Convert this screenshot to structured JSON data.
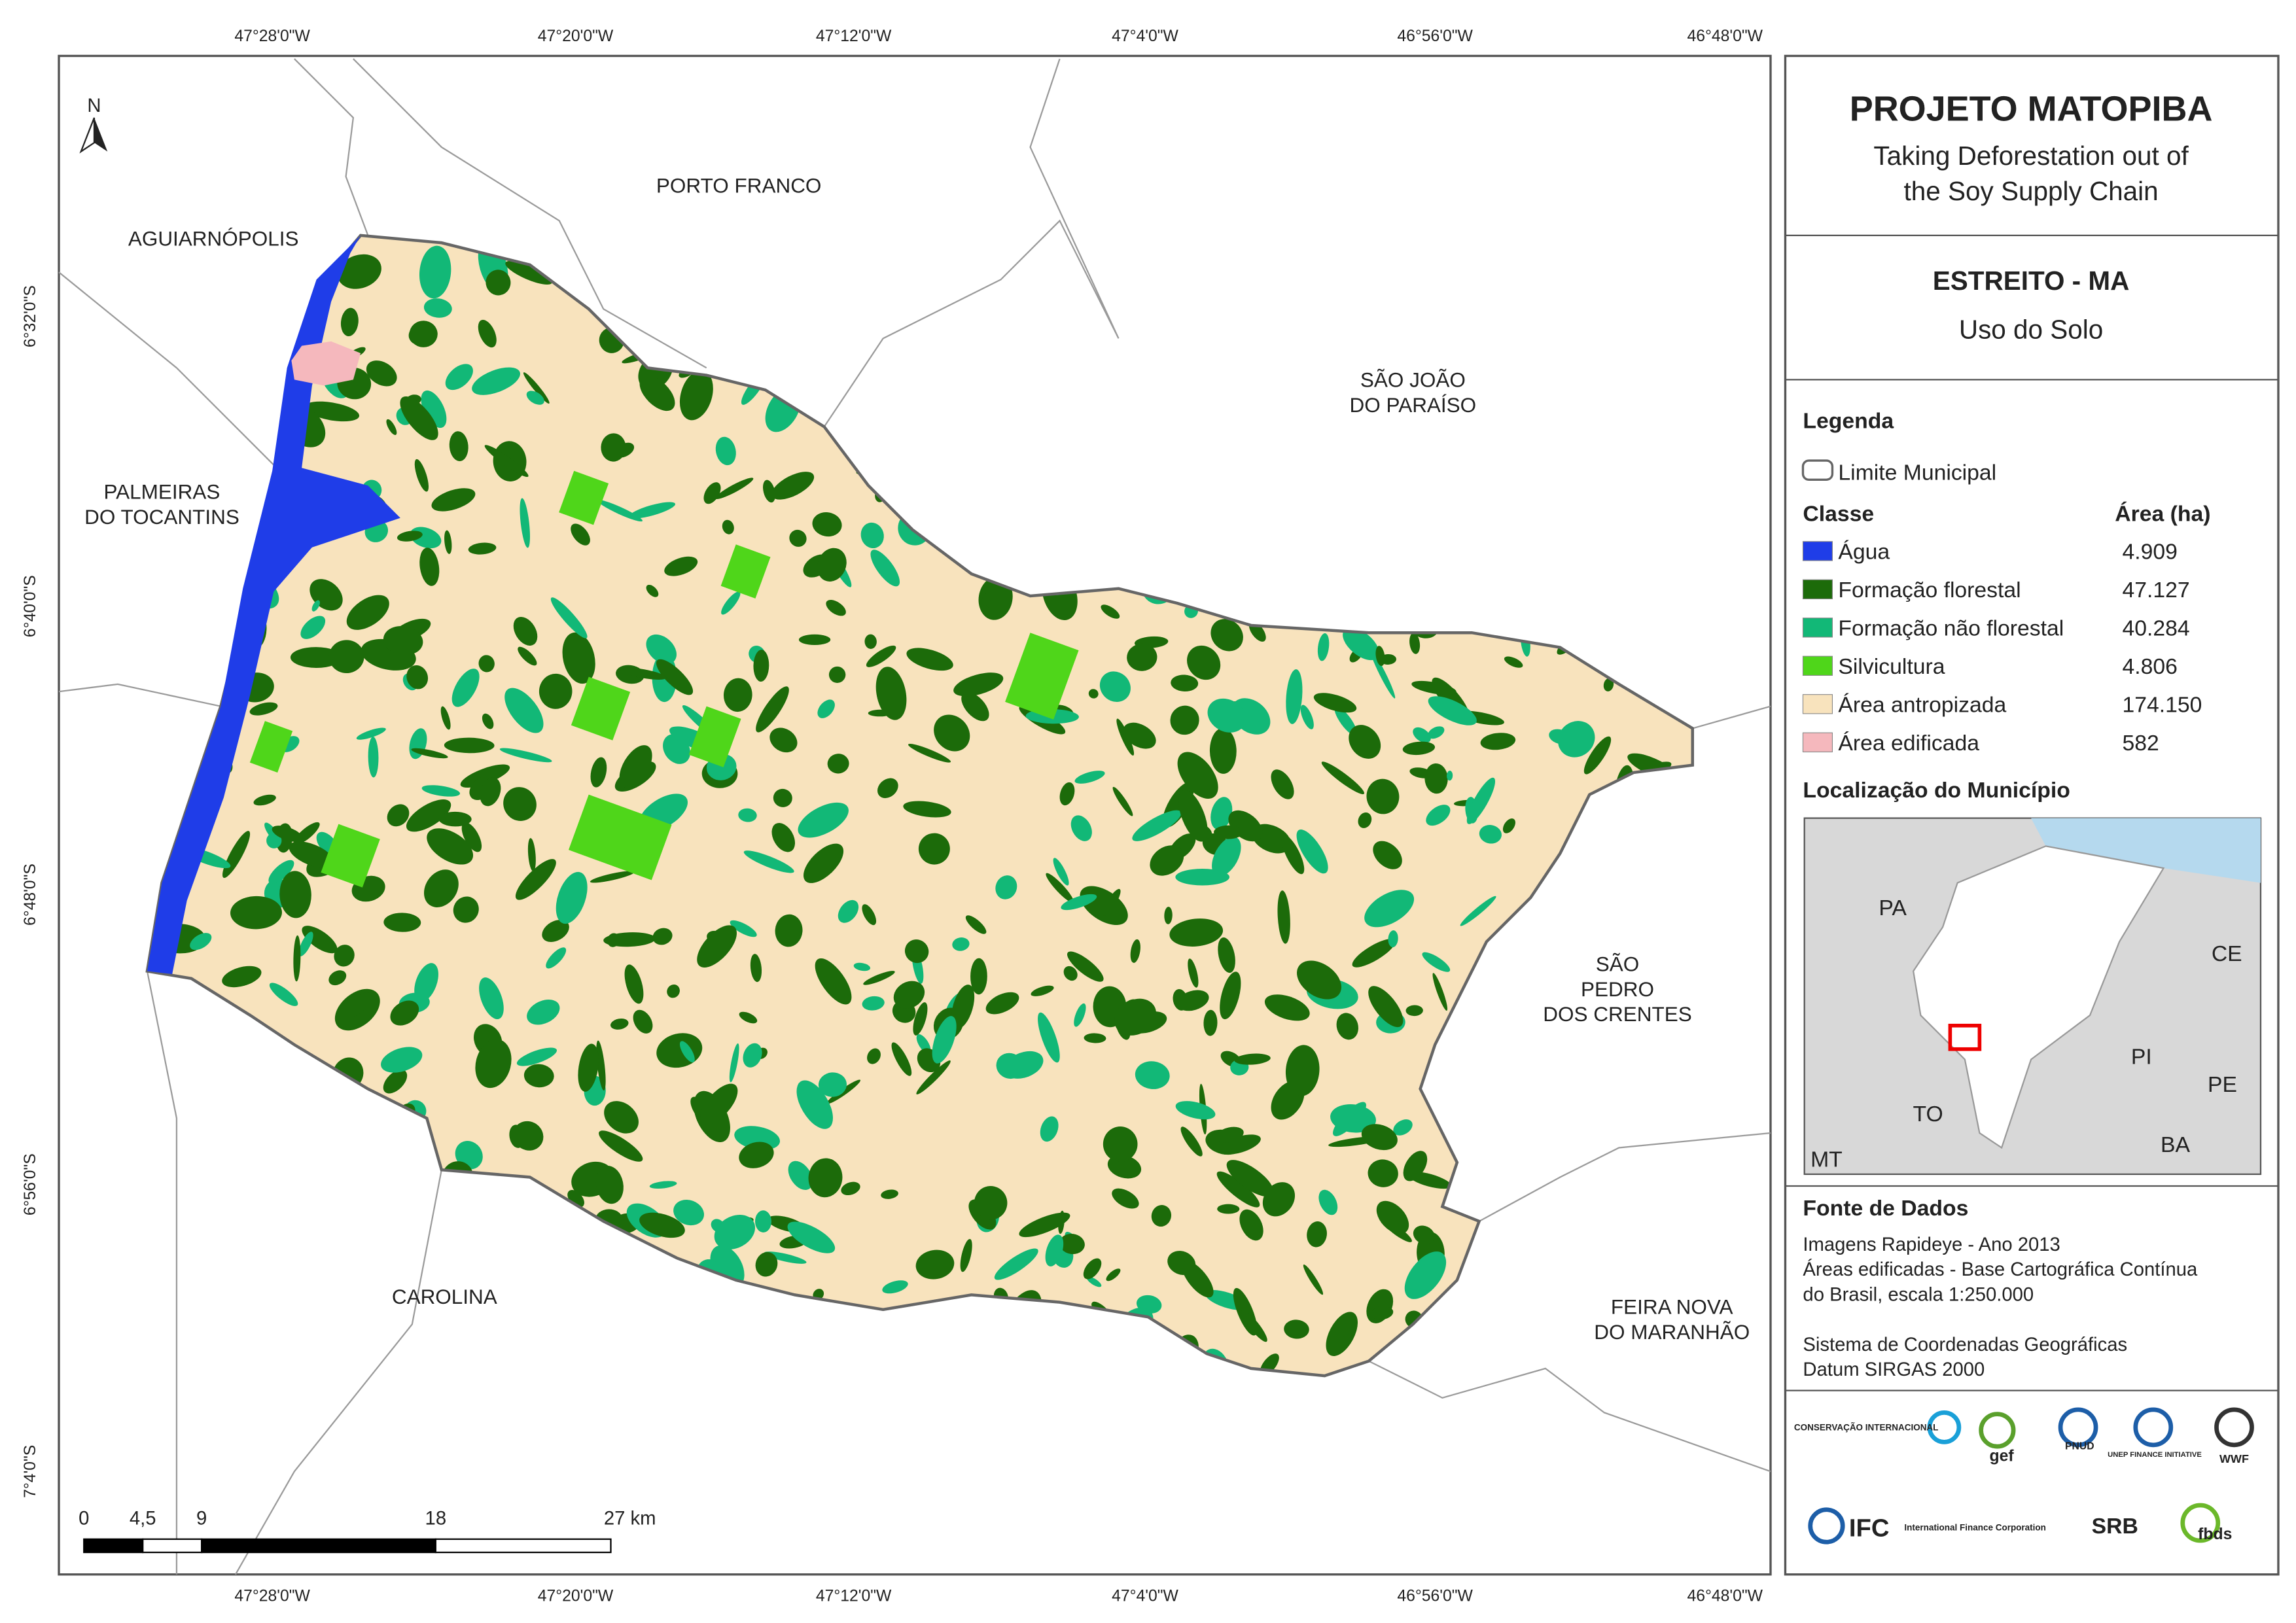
{
  "map": {
    "north": "N",
    "lon_labels": [
      "47°28'0\"W",
      "47°20'0\"W",
      "47°12'0\"W",
      "47°4'0\"W",
      "46°56'0\"W",
      "46°48'0\"W"
    ],
    "lat_labels": [
      "6°32'0\"S",
      "6°40'0\"S",
      "6°48'0\"S",
      "6°56'0\"S",
      "7°4'0\"S"
    ],
    "places": [
      {
        "lines": [
          "PORTO FRANCO"
        ]
      },
      {
        "lines": [
          "AGUIARNÓPOLIS"
        ]
      },
      {
        "lines": [
          "SÃO JOÃO",
          "DO PARAÍSO"
        ]
      },
      {
        "lines": [
          "PALMEIRAS",
          "DO TOCANTINS"
        ]
      },
      {
        "lines": [
          "SÃO",
          "PEDRO",
          "DOS CRENTES"
        ]
      },
      {
        "lines": [
          "CAROLINA"
        ]
      },
      {
        "lines": [
          "FEIRA NOVA",
          "DO MARANHÃO"
        ]
      }
    ],
    "scale": [
      "0",
      "4,5",
      "9",
      "18",
      "27 km"
    ]
  },
  "panel": {
    "title": "PROJETO MATOPIBA",
    "subtitle": [
      "Taking Deforestation out of",
      "the Soy Supply Chain"
    ],
    "municipality": "ESTREITO - MA",
    "theme": "Uso do Solo",
    "legend": {
      "heading": "Legenda",
      "boundary": "Limite Municipal",
      "class_header": "Classe",
      "area_header": "Área (ha)",
      "classes": [
        {
          "name": "Água",
          "area": "4.909",
          "color": "#1f3de8"
        },
        {
          "name": "Formação florestal",
          "area": "47.127",
          "color": "#1c6b0a"
        },
        {
          "name": "Formação não florestal",
          "area": "40.284",
          "color": "#12b877"
        },
        {
          "name": "Silvicultura",
          "area": "4.806",
          "color": "#4fd61a"
        },
        {
          "name": "Área antropizada",
          "area": "174.150",
          "color": "#f8e3bd"
        },
        {
          "name": "Área edificada",
          "area": "582",
          "color": "#f5b8bd"
        }
      ]
    },
    "location": {
      "heading": "Localização do Município",
      "labels": [
        "PA",
        "CE",
        "PI",
        "PE",
        "TO",
        "BA",
        "MT"
      ]
    },
    "sources": {
      "heading": "Fonte de Dados",
      "lines": [
        "Imagens Rapideye - Ano 2013",
        "Áreas edificadas - Base Cartográfica Contínua",
        "do Brasil, escala 1:250.000",
        "Sistema de Coordenadas Geográficas",
        "Datum SIRGAS 2000"
      ]
    },
    "logos": [
      "CONSERVAÇÃO INTERNACIONAL",
      "gef",
      "PNUD",
      "UNEP FINANCE INITIATIVE",
      "WWF",
      "IFC",
      "International Finance Corporation",
      "SRB",
      "fbds"
    ]
  }
}
